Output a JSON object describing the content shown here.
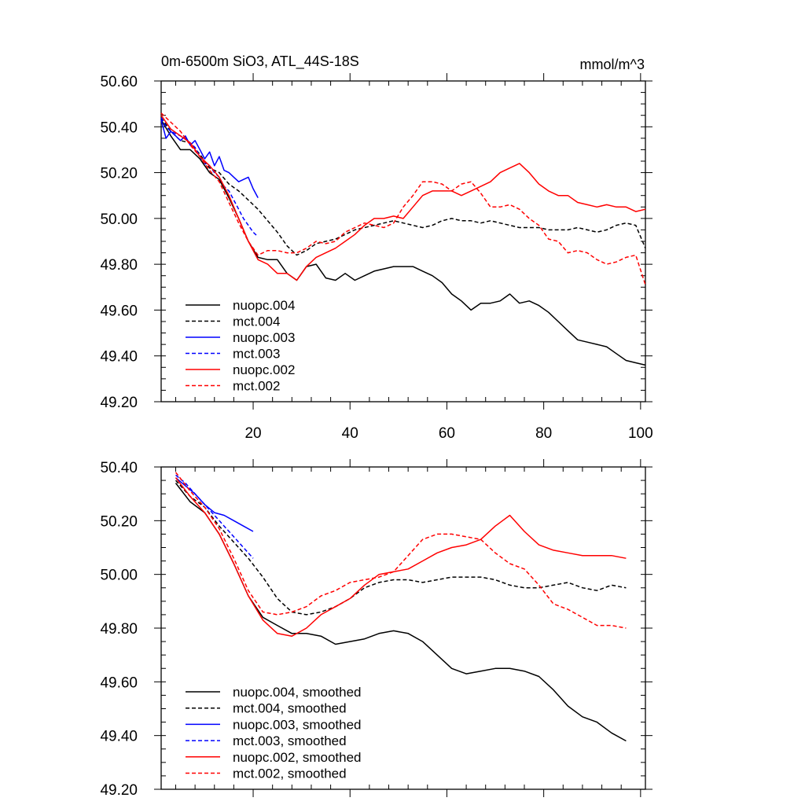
{
  "chart_data": [
    {
      "type": "line",
      "title_left": "0m-6500m SiO3, ATL_44S-18S",
      "title_right": "mmol/m^3",
      "xlabel": "",
      "ylabel": "",
      "xlim": [
        1,
        101
      ],
      "ylim": [
        49.2,
        50.6
      ],
      "x_ticks": [
        20,
        40,
        60,
        80,
        100
      ],
      "x_tick_labels": [
        "20",
        "40",
        "60",
        "80",
        "100"
      ],
      "y_ticks": [
        49.2,
        49.4,
        49.6,
        49.8,
        50.0,
        50.2,
        50.4,
        50.6
      ],
      "y_tick_labels": [
        "49.20",
        "49.40",
        "49.60",
        "49.80",
        "50.00",
        "50.20",
        "50.40",
        "50.60"
      ],
      "legend_position": "bottom-left",
      "series": [
        {
          "name": "nuopc.004",
          "color": "#000000",
          "dash": "solid",
          "x": [
            1,
            3,
            5,
            7,
            9,
            11,
            13,
            15,
            17,
            19,
            21,
            23,
            25,
            27,
            29,
            31,
            33,
            35,
            37,
            39,
            41,
            43,
            45,
            47,
            49,
            51,
            53,
            55,
            57,
            59,
            61,
            63,
            65,
            67,
            69,
            71,
            73,
            75,
            77,
            79,
            81,
            83,
            85,
            87,
            89,
            91,
            93,
            95,
            97,
            99,
            101
          ],
          "y": [
            50.43,
            50.36,
            50.3,
            50.3,
            50.26,
            50.2,
            50.17,
            50.09,
            50.0,
            49.9,
            49.83,
            49.82,
            49.82,
            49.76,
            49.73,
            49.79,
            49.8,
            49.74,
            49.73,
            49.76,
            49.73,
            49.75,
            49.77,
            49.78,
            49.79,
            49.79,
            49.79,
            49.77,
            49.75,
            49.72,
            49.67,
            49.64,
            49.6,
            49.63,
            49.63,
            49.64,
            49.67,
            49.63,
            49.64,
            49.62,
            49.59,
            49.55,
            49.51,
            49.47,
            49.46,
            49.45,
            49.44,
            49.41,
            49.38,
            49.37,
            49.36
          ]
        },
        {
          "name": "mct.004",
          "color": "#000000",
          "dash": "dashed",
          "x": [
            1,
            3,
            5,
            7,
            9,
            11,
            13,
            15,
            17,
            19,
            21,
            23,
            25,
            27,
            29,
            31,
            33,
            35,
            37,
            39,
            41,
            43,
            45,
            47,
            49,
            51,
            53,
            55,
            57,
            59,
            61,
            63,
            65,
            67,
            69,
            71,
            73,
            75,
            77,
            79,
            81,
            83,
            85,
            87,
            89,
            91,
            93,
            95,
            97,
            99,
            101
          ],
          "y": [
            50.44,
            50.38,
            50.34,
            50.33,
            50.28,
            50.22,
            50.2,
            50.15,
            50.12,
            50.08,
            50.04,
            49.99,
            49.94,
            49.88,
            49.84,
            49.86,
            49.89,
            49.9,
            49.91,
            49.93,
            49.95,
            49.96,
            49.97,
            49.98,
            49.99,
            49.98,
            49.97,
            49.96,
            49.97,
            49.99,
            50.0,
            49.99,
            49.99,
            49.98,
            49.99,
            49.98,
            49.97,
            49.96,
            49.96,
            49.96,
            49.95,
            49.95,
            49.95,
            49.96,
            49.95,
            49.94,
            49.95,
            49.97,
            49.98,
            49.97,
            49.87
          ]
        },
        {
          "name": "nuopc.003",
          "color": "#0000ff",
          "dash": "solid",
          "x": [
            1,
            2,
            3,
            4,
            5,
            6,
            7,
            8,
            9,
            10,
            11,
            12,
            13,
            14,
            15,
            16,
            17,
            18,
            19,
            20,
            21
          ],
          "y": [
            50.43,
            50.35,
            50.38,
            50.36,
            50.34,
            50.36,
            50.32,
            50.34,
            50.3,
            50.26,
            50.29,
            50.23,
            50.27,
            50.21,
            50.2,
            50.18,
            50.16,
            50.17,
            50.18,
            50.13,
            50.09
          ]
        },
        {
          "name": "mct.003",
          "color": "#0000ff",
          "dash": "dashed",
          "x": [
            1,
            2,
            3,
            4,
            5,
            6,
            7,
            8,
            9,
            10,
            11,
            12,
            13,
            14,
            15,
            16,
            17,
            18,
            19,
            20,
            21
          ],
          "y": [
            50.44,
            50.4,
            50.38,
            50.37,
            50.36,
            50.35,
            50.33,
            50.31,
            50.27,
            50.24,
            50.23,
            50.2,
            50.18,
            50.14,
            50.12,
            50.08,
            50.04,
            50.0,
            49.97,
            49.94,
            49.92
          ]
        },
        {
          "name": "nuopc.002",
          "color": "#ff0000",
          "dash": "solid",
          "x": [
            1,
            3,
            5,
            7,
            9,
            11,
            13,
            15,
            17,
            19,
            21,
            23,
            25,
            27,
            29,
            31,
            33,
            35,
            37,
            39,
            41,
            43,
            45,
            47,
            49,
            51,
            53,
            55,
            57,
            59,
            61,
            63,
            65,
            67,
            69,
            71,
            73,
            75,
            77,
            79,
            81,
            83,
            85,
            87,
            89,
            91,
            93,
            95,
            97,
            99,
            101
          ],
          "y": [
            50.45,
            50.39,
            50.36,
            50.33,
            50.27,
            50.23,
            50.18,
            50.1,
            50.0,
            49.9,
            49.82,
            49.8,
            49.76,
            49.76,
            49.73,
            49.79,
            49.83,
            49.85,
            49.87,
            49.9,
            49.93,
            49.97,
            50.0,
            50.0,
            50.01,
            50.0,
            50.05,
            50.1,
            50.12,
            50.12,
            50.12,
            50.1,
            50.12,
            50.14,
            50.16,
            50.2,
            50.22,
            50.24,
            50.2,
            50.15,
            50.12,
            50.1,
            50.1,
            50.07,
            50.06,
            50.05,
            50.06,
            50.05,
            50.05,
            50.03,
            50.04
          ]
        },
        {
          "name": "mct.002",
          "color": "#ff0000",
          "dash": "dashed",
          "x": [
            1,
            3,
            5,
            7,
            9,
            11,
            13,
            15,
            17,
            19,
            21,
            23,
            25,
            27,
            29,
            31,
            33,
            35,
            37,
            39,
            41,
            43,
            45,
            47,
            49,
            51,
            53,
            55,
            57,
            59,
            61,
            63,
            65,
            67,
            69,
            71,
            73,
            75,
            77,
            79,
            81,
            83,
            85,
            87,
            89,
            91,
            93,
            95,
            97,
            99,
            101
          ],
          "y": [
            50.46,
            50.42,
            50.38,
            50.32,
            50.27,
            50.21,
            50.16,
            50.07,
            49.98,
            49.9,
            49.84,
            49.86,
            49.86,
            49.85,
            49.85,
            49.87,
            49.9,
            49.89,
            49.9,
            49.94,
            49.96,
            49.98,
            49.97,
            49.96,
            49.98,
            50.05,
            50.1,
            50.16,
            50.16,
            50.15,
            50.12,
            50.15,
            50.16,
            50.11,
            50.05,
            50.05,
            50.06,
            50.04,
            50.0,
            49.97,
            49.91,
            49.9,
            49.85,
            49.86,
            49.85,
            49.82,
            49.8,
            49.81,
            49.83,
            49.84,
            49.71
          ]
        }
      ]
    },
    {
      "type": "line",
      "title_left": "",
      "title_right": "",
      "xlabel": "",
      "ylabel": "",
      "xlim": [
        1,
        101
      ],
      "ylim": [
        49.2,
        50.4
      ],
      "x_ticks": [
        20,
        40,
        60,
        80,
        100
      ],
      "x_tick_labels": [],
      "y_ticks": [
        49.2,
        49.4,
        49.6,
        49.8,
        50.0,
        50.2,
        50.4
      ],
      "y_tick_labels": [
        "49.20",
        "49.40",
        "49.60",
        "49.80",
        "50.00",
        "50.20",
        "50.40"
      ],
      "legend_position": "bottom-left",
      "series": [
        {
          "name": "nuopc.004, smoothed",
          "color": "#000000",
          "dash": "solid",
          "x": [
            4,
            7,
            10,
            13,
            16,
            19,
            22,
            25,
            28,
            31,
            34,
            37,
            40,
            43,
            46,
            49,
            52,
            55,
            58,
            61,
            64,
            67,
            70,
            73,
            76,
            79,
            82,
            85,
            88,
            91,
            94,
            97
          ],
          "y": [
            50.34,
            50.27,
            50.23,
            50.15,
            50.04,
            49.92,
            49.84,
            49.81,
            49.78,
            49.78,
            49.77,
            49.74,
            49.75,
            49.76,
            49.78,
            49.79,
            49.78,
            49.75,
            49.7,
            49.65,
            49.63,
            49.64,
            49.65,
            49.65,
            49.64,
            49.62,
            49.57,
            49.51,
            49.47,
            49.45,
            49.41,
            49.38
          ]
        },
        {
          "name": "mct.004, smoothed",
          "color": "#000000",
          "dash": "dashed",
          "x": [
            4,
            7,
            10,
            13,
            16,
            19,
            22,
            25,
            28,
            31,
            34,
            37,
            40,
            43,
            46,
            49,
            52,
            55,
            58,
            61,
            64,
            67,
            70,
            73,
            76,
            79,
            82,
            85,
            88,
            91,
            94,
            97
          ],
          "y": [
            50.35,
            50.29,
            50.25,
            50.18,
            50.12,
            50.06,
            49.99,
            49.91,
            49.86,
            49.85,
            49.86,
            49.88,
            49.91,
            49.95,
            49.97,
            49.98,
            49.98,
            49.97,
            49.98,
            49.99,
            49.99,
            49.99,
            49.98,
            49.96,
            49.95,
            49.95,
            49.96,
            49.97,
            49.95,
            49.94,
            49.96,
            49.95
          ]
        },
        {
          "name": "nuopc.003, smoothed",
          "color": "#0000ff",
          "dash": "solid",
          "x": [
            4,
            6,
            8,
            10,
            12,
            14,
            16,
            18,
            20
          ],
          "y": [
            50.36,
            50.33,
            50.3,
            50.26,
            50.23,
            50.22,
            50.2,
            50.18,
            50.16
          ]
        },
        {
          "name": "mct.003, smoothed",
          "color": "#0000ff",
          "dash": "dashed",
          "x": [
            4,
            6,
            8,
            10,
            12,
            14,
            16,
            18,
            20
          ],
          "y": [
            50.37,
            50.34,
            50.3,
            50.26,
            50.22,
            50.18,
            50.14,
            50.1,
            50.06
          ]
        },
        {
          "name": "nuopc.002, smoothed",
          "color": "#ff0000",
          "dash": "solid",
          "x": [
            4,
            7,
            10,
            13,
            16,
            19,
            22,
            25,
            28,
            31,
            34,
            37,
            40,
            43,
            46,
            49,
            52,
            55,
            58,
            61,
            64,
            67,
            70,
            73,
            76,
            79,
            82,
            85,
            88,
            91,
            94,
            97
          ],
          "y": [
            50.36,
            50.29,
            50.23,
            50.15,
            50.04,
            49.92,
            49.83,
            49.78,
            49.77,
            49.8,
            49.85,
            49.88,
            49.91,
            49.96,
            50.0,
            50.01,
            50.02,
            50.05,
            50.08,
            50.1,
            50.11,
            50.13,
            50.18,
            50.22,
            50.16,
            50.11,
            50.09,
            50.08,
            50.07,
            50.07,
            50.07,
            50.06
          ]
        },
        {
          "name": "mct.002, smoothed",
          "color": "#ff0000",
          "dash": "dashed",
          "x": [
            4,
            7,
            10,
            13,
            16,
            19,
            22,
            25,
            28,
            31,
            34,
            37,
            40,
            43,
            46,
            49,
            52,
            55,
            58,
            61,
            64,
            67,
            70,
            73,
            76,
            79,
            82,
            85,
            88,
            91,
            94,
            97
          ],
          "y": [
            50.38,
            50.31,
            50.25,
            50.17,
            50.06,
            49.94,
            49.86,
            49.85,
            49.86,
            49.88,
            49.92,
            49.94,
            49.97,
            49.98,
            49.99,
            50.01,
            50.07,
            50.13,
            50.15,
            50.15,
            50.14,
            50.13,
            50.08,
            50.04,
            50.02,
            49.96,
            49.89,
            49.87,
            49.84,
            49.81,
            49.81,
            49.8
          ]
        }
      ]
    }
  ]
}
